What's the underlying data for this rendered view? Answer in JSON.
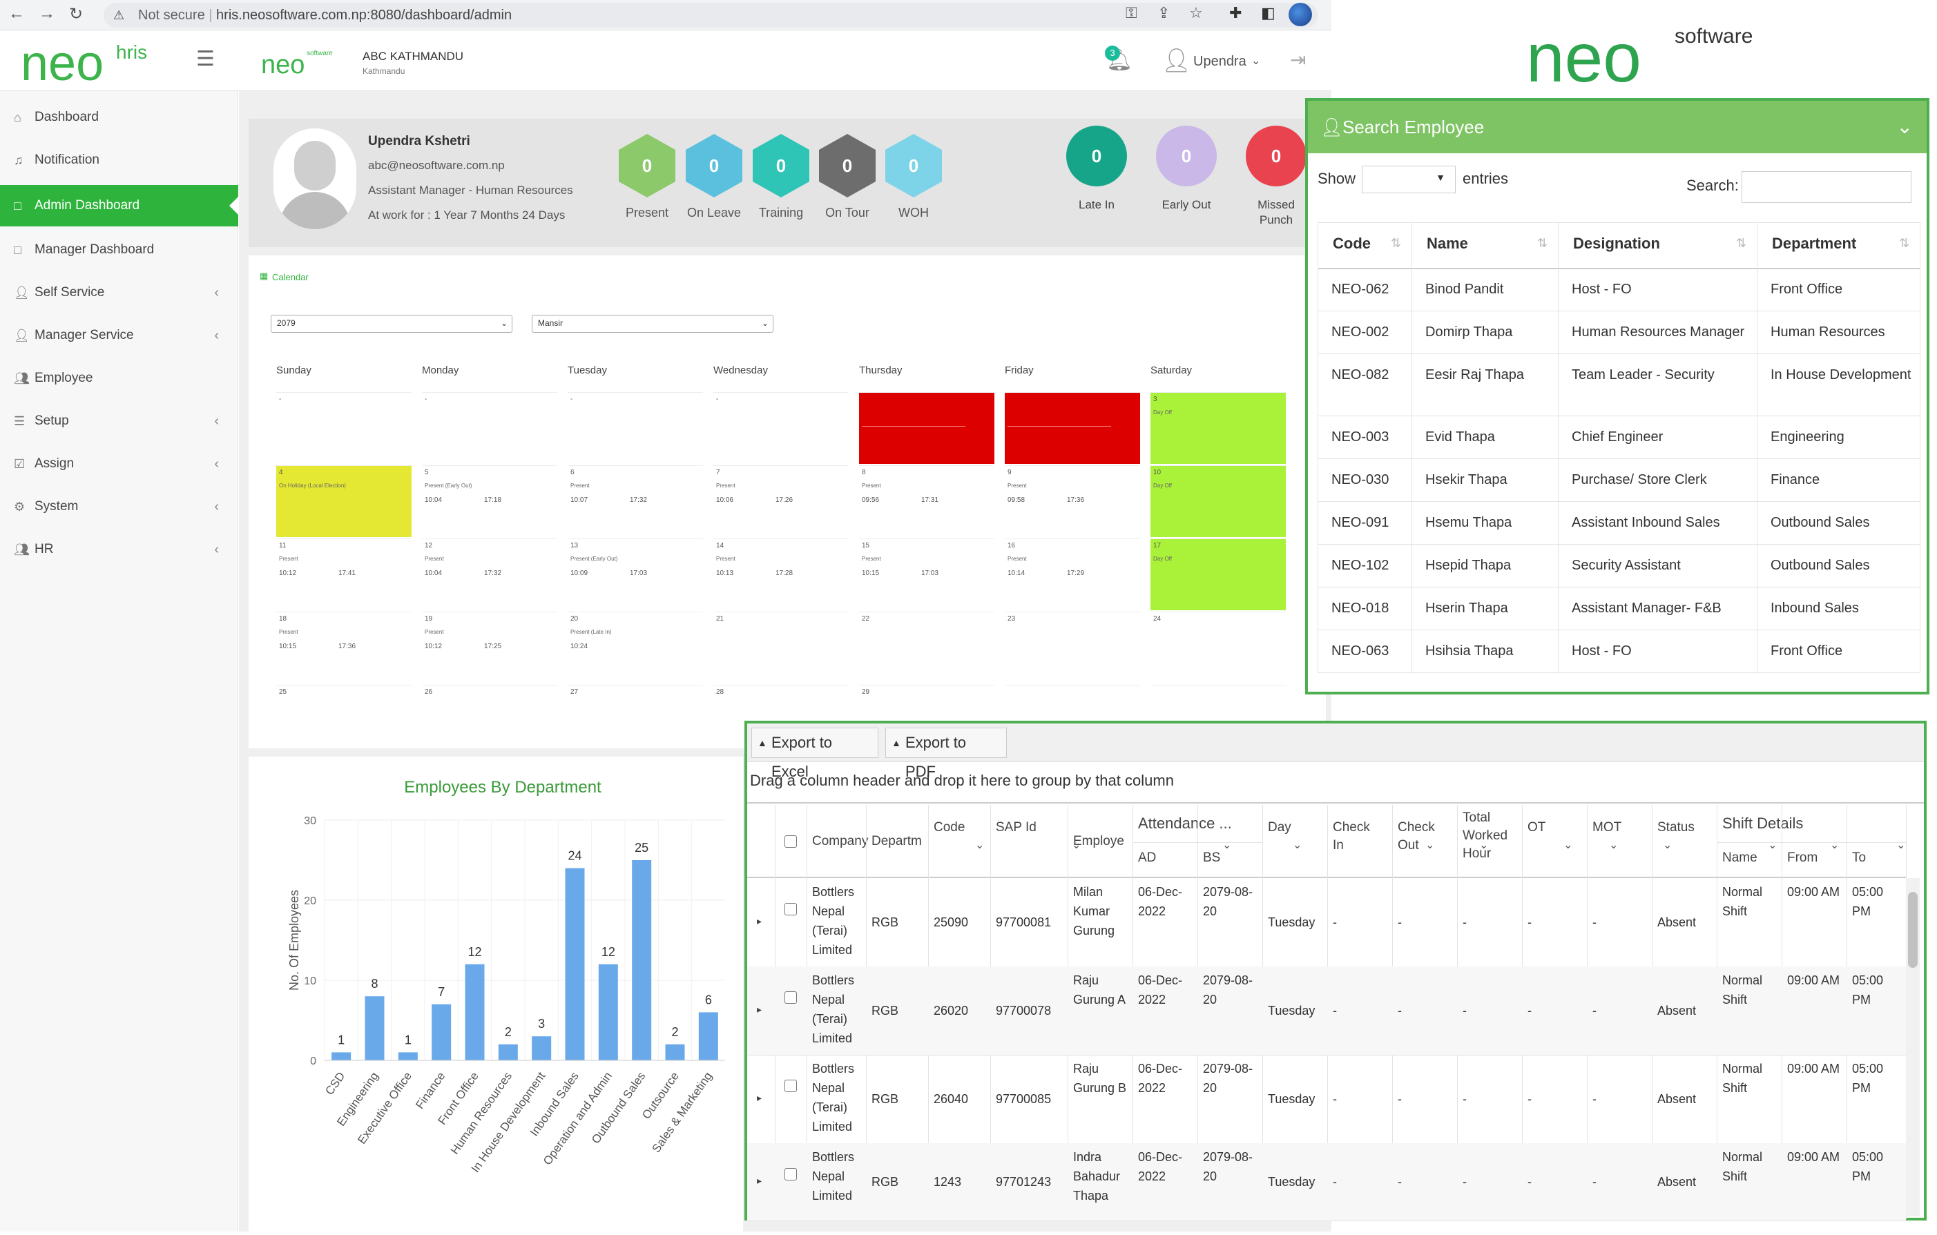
{
  "browser": {
    "security": "Not secure",
    "url": "hris.neosoftware.com.np:8080/dashboard/admin"
  },
  "header": {
    "logo": "neo",
    "logo_sup": "hris",
    "small_logo": "neo",
    "small_logo_sup": "software",
    "company": "ABC KATHMANDU",
    "company_sub": "Kathmandu",
    "notification_count": "3",
    "user": "Upendra"
  },
  "brand": {
    "logo": "neo",
    "logo_sup": "software"
  },
  "sidebar": {
    "items": [
      {
        "label": "Dashboard",
        "icon": "home-icon",
        "chev": false
      },
      {
        "label": "Notification",
        "icon": "bell-icon",
        "chev": false
      },
      {
        "label": "Admin Dashboard",
        "icon": "square-icon",
        "chev": false,
        "active": true
      },
      {
        "label": "Manager Dashboard",
        "icon": "square-icon",
        "chev": false
      },
      {
        "label": "Self Service",
        "icon": "user-icon",
        "chev": true
      },
      {
        "label": "Manager Service",
        "icon": "user-icon",
        "chev": true
      },
      {
        "label": "Employee",
        "icon": "users-icon",
        "chev": false
      },
      {
        "label": "Setup",
        "icon": "list-icon",
        "chev": true
      },
      {
        "label": "Assign",
        "icon": "check-icon",
        "chev": true
      },
      {
        "label": "System",
        "icon": "gear-icon",
        "chev": true
      },
      {
        "label": "HR",
        "icon": "user-plus-icon",
        "chev": true
      }
    ]
  },
  "profile": {
    "name": "Upendra Kshetri",
    "email": "abc@neosoftware.com.np",
    "designation": "Assistant Manager - Human Resources",
    "work": "At work for : 1 Year 7 Months 24 Days"
  },
  "stats": [
    {
      "label": "Present",
      "value": "0",
      "color": "#8cc96a"
    },
    {
      "label": "On Leave",
      "value": "0",
      "color": "#5bc0de"
    },
    {
      "label": "Training",
      "value": "0",
      "color": "#2ec4b6"
    },
    {
      "label": "On Tour",
      "value": "0",
      "color": "#6d6d6d"
    },
    {
      "label": "WOH",
      "value": "0",
      "color": "#7dd3e8"
    }
  ],
  "punches": [
    {
      "label": "Late In",
      "value": "0",
      "color": "#17a589"
    },
    {
      "label": "Early Out",
      "value": "0",
      "color": "#c9b8e8"
    },
    {
      "label": "Missed Punch",
      "value": "0",
      "color": "#e9434f"
    }
  ],
  "calendar": {
    "title": "Calendar",
    "year": "2079",
    "month": "Mansir",
    "days": [
      "Sunday",
      "Monday",
      "Tuesday",
      "Wednesday",
      "Thursday",
      "Friday",
      "Saturday"
    ],
    "weeks": [
      [
        {
          "num": "-"
        },
        {
          "num": "-"
        },
        {
          "num": "-"
        },
        {
          "num": "-"
        },
        {
          "num": "",
          "color": "#dd0000"
        },
        {
          "num": "",
          "color": "#dd0000"
        },
        {
          "num": "3",
          "status": "Day Off",
          "color": "#aaf23a"
        }
      ],
      [
        {
          "num": "4",
          "status": "On Holiday (Local Election)",
          "color": "#e5e832"
        },
        {
          "num": "5",
          "status": "Present (Early Out)",
          "in": "10:04",
          "out": "17:18"
        },
        {
          "num": "6",
          "status": "Present",
          "in": "10:07",
          "out": "17:32"
        },
        {
          "num": "7",
          "status": "Present",
          "in": "10:06",
          "out": "17:26"
        },
        {
          "num": "8",
          "status": "Present",
          "in": "09:56",
          "out": "17:31"
        },
        {
          "num": "9",
          "status": "Present",
          "in": "09:58",
          "out": "17:36"
        },
        {
          "num": "10",
          "status": "Day Off",
          "color": "#aaf23a"
        }
      ],
      [
        {
          "num": "11",
          "status": "Present",
          "in": "10:12",
          "out": "17:41"
        },
        {
          "num": "12",
          "status": "Present",
          "in": "10:04",
          "out": "17:32"
        },
        {
          "num": "13",
          "status": "Present (Early Out)",
          "in": "10:09",
          "out": "17:03"
        },
        {
          "num": "14",
          "status": "Present",
          "in": "10:13",
          "out": "17:28"
        },
        {
          "num": "15",
          "status": "Present",
          "in": "10:15",
          "out": "17:03"
        },
        {
          "num": "16",
          "status": "Present",
          "in": "10:14",
          "out": "17:29"
        },
        {
          "num": "17",
          "status": "Day Off",
          "color": "#aaf23a"
        }
      ],
      [
        {
          "num": "18",
          "status": "Present",
          "in": "10:15",
          "out": "17:36"
        },
        {
          "num": "19",
          "status": "Present",
          "in": "10:12",
          "out": "17:25"
        },
        {
          "num": "20",
          "status": "Present (Late In)",
          "in": "10:24",
          "out": ""
        },
        {
          "num": "21"
        },
        {
          "num": "22"
        },
        {
          "num": "23"
        },
        {
          "num": "24"
        }
      ],
      [
        {
          "num": "25"
        },
        {
          "num": "26"
        },
        {
          "num": "27"
        },
        {
          "num": "28"
        },
        {
          "num": "29"
        },
        {
          "num": ""
        },
        {
          "num": ""
        }
      ]
    ]
  },
  "chart_data": {
    "type": "bar",
    "title": "Employees By Department",
    "ylabel": "No. Of Employees",
    "xlabel": "",
    "ylim": [
      0,
      30
    ],
    "yticks": [
      0,
      10,
      20,
      30
    ],
    "categories": [
      "CSD",
      "Engineering",
      "Executive Office",
      "Finance",
      "Front Office",
      "Human Resources",
      "In House Development",
      "Inbound Sales",
      "Operation and Admin",
      "Outbound Sales",
      "Outsource",
      "Sales & Marketing"
    ],
    "values": [
      1,
      8,
      1,
      7,
      12,
      2,
      3,
      24,
      12,
      25,
      2,
      6
    ],
    "color": "#6aa9e9",
    "grid": true
  },
  "search": {
    "title": "Search Employee",
    "show": "Show",
    "entries": "entries",
    "search_label": "Search:",
    "columns": [
      "Code",
      "Name",
      "Designation",
      "Department"
    ],
    "rows": [
      [
        "NEO-062",
        "Binod Pandit",
        "Host - FO",
        "Front Office"
      ],
      [
        "NEO-002",
        "Domirp Thapa",
        "Human Resources Manager",
        "Human Resources"
      ],
      [
        "NEO-082",
        "Eesir Raj Thapa",
        "Team Leader - Security",
        "In House Development"
      ],
      [
        "NEO-003",
        "Evid Thapa",
        "Chief Engineer",
        "Engineering"
      ],
      [
        "NEO-030",
        "Hsekir Thapa",
        "Purchase/ Store Clerk",
        "Finance"
      ],
      [
        "NEO-091",
        "Hsemu Thapa",
        "Assistant Inbound Sales",
        "Outbound Sales"
      ],
      [
        "NEO-102",
        "Hsepid Thapa",
        "Security Assistant",
        "Outbound Sales"
      ],
      [
        "NEO-018",
        "Hserin Thapa",
        "Assistant Manager- F&B",
        "Inbound Sales"
      ],
      [
        "NEO-063",
        "Hsihsia Thapa",
        "Host - FO",
        "Front Office"
      ]
    ]
  },
  "grid": {
    "export_excel": "Export to Excel",
    "export_pdf": "Export to PDF",
    "group_hint": "Drag a column header and drop it here to group by that column",
    "headers": {
      "company": "Company",
      "department": "Departm",
      "code": "Code",
      "sap": "SAP Id",
      "employee": "Employe",
      "attendance": "Attendance ...",
      "ad": "AD",
      "bs": "BS",
      "day": "Day",
      "checkin": "Check In",
      "checkout": "Check Out",
      "total": "Total Worked Hour",
      "ot": "OT",
      "mot": "MOT",
      "status": "Status",
      "shift": "Shift Details",
      "shift_name": "Name",
      "from": "From",
      "to": "To"
    },
    "rows": [
      {
        "company": "Bottlers Nepal (Terai) Limited",
        "dept": "RGB",
        "code": "25090",
        "sap": "97700081",
        "employee": "Milan Kumar Gurung",
        "ad": "06-Dec-2022",
        "bs": "2079-08-20",
        "day": "Tuesday",
        "checkin": "-",
        "checkout": "-",
        "total": "-",
        "ot": "-",
        "mot": "-",
        "status": "Absent",
        "shift": "Normal Shift",
        "from": "09:00 AM",
        "to": "05:00 PM"
      },
      {
        "company": "Bottlers Nepal (Terai) Limited",
        "dept": "RGB",
        "code": "26020",
        "sap": "97700078",
        "employee": "Raju Gurung A",
        "ad": "06-Dec-2022",
        "bs": "2079-08-20",
        "day": "Tuesday",
        "checkin": "-",
        "checkout": "-",
        "total": "-",
        "ot": "-",
        "mot": "-",
        "status": "Absent",
        "shift": "Normal Shift",
        "from": "09:00 AM",
        "to": "05:00 PM"
      },
      {
        "company": "Bottlers Nepal (Terai) Limited",
        "dept": "RGB",
        "code": "26040",
        "sap": "97700085",
        "employee": "Raju Gurung B",
        "ad": "06-Dec-2022",
        "bs": "2079-08-20",
        "day": "Tuesday",
        "checkin": "-",
        "checkout": "-",
        "total": "-",
        "ot": "-",
        "mot": "-",
        "status": "Absent",
        "shift": "Normal Shift",
        "from": "09:00 AM",
        "to": "05:00 PM"
      },
      {
        "company": "Bottlers Nepal Limited",
        "dept": "RGB",
        "code": "1243",
        "sap": "97701243",
        "employee": "Indra Bahadur Thapa",
        "ad": "06-Dec-2022",
        "bs": "2079-08-20",
        "day": "Tuesday",
        "checkin": "-",
        "checkout": "-",
        "total": "-",
        "ot": "-",
        "mot": "-",
        "status": "Absent",
        "shift": "Normal Shift",
        "from": "09:00 AM",
        "to": "05:00 PM"
      }
    ]
  }
}
